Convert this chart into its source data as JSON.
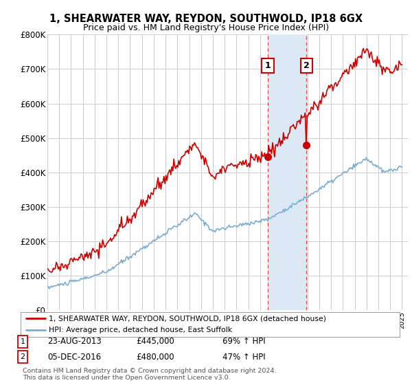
{
  "title": "1, SHEARWATER WAY, REYDON, SOUTHWOLD, IP18 6GX",
  "subtitle": "Price paid vs. HM Land Registry's House Price Index (HPI)",
  "ylim": [
    0,
    800000
  ],
  "yticks": [
    0,
    100000,
    200000,
    300000,
    400000,
    500000,
    600000,
    700000,
    800000
  ],
  "ytick_labels": [
    "£0",
    "£100K",
    "£200K",
    "£300K",
    "£400K",
    "£500K",
    "£600K",
    "£700K",
    "£800K"
  ],
  "hpi_color": "#7aadd4",
  "price_color": "#cc0000",
  "shade_color": "#dce9f5",
  "transaction1_date": 2013.64,
  "transaction1_price": 445000,
  "transaction2_date": 2016.92,
  "transaction2_price": 480000,
  "legend_line1": "1, SHEARWATER WAY, REYDON, SOUTHWOLD, IP18 6GX (detached house)",
  "legend_line2": "HPI: Average price, detached house, East Suffolk",
  "annotation1_num": "1",
  "annotation1_date": "23-AUG-2013",
  "annotation1_price": "£445,000",
  "annotation1_hpi": "69% ↑ HPI",
  "annotation2_num": "2",
  "annotation2_date": "05-DEC-2016",
  "annotation2_price": "£480,000",
  "annotation2_hpi": "47% ↑ HPI",
  "footer": "Contains HM Land Registry data © Crown copyright and database right 2024.\nThis data is licensed under the Open Government Licence v3.0.",
  "background_color": "#ffffff",
  "grid_color": "#cccccc"
}
